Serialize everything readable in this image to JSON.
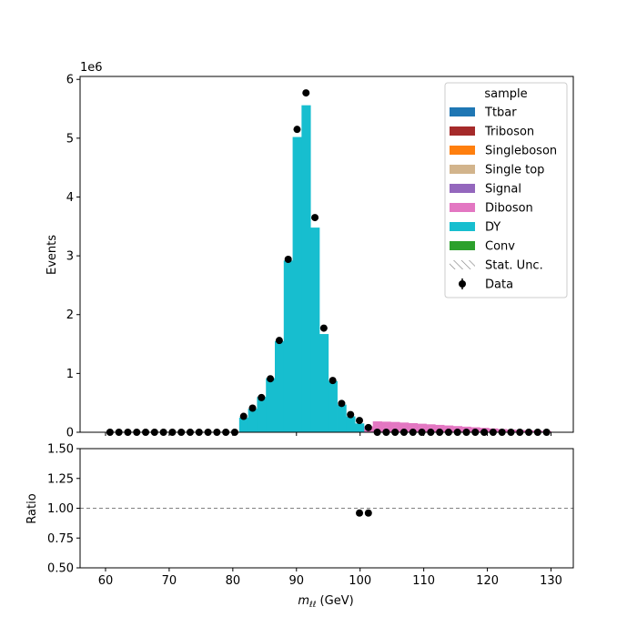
{
  "chart_data": {
    "type": "histogram",
    "x_range": [
      56,
      133.5
    ],
    "x_ticks": [
      60,
      70,
      80,
      90,
      100,
      110,
      120,
      130
    ],
    "x_tick_labels": [
      "60",
      "70",
      "80",
      "90",
      "100",
      "110",
      "120",
      "130"
    ],
    "main": {
      "ylabel": "Events",
      "ylim": [
        0,
        6.05
      ],
      "y_ticks": [
        0,
        1,
        2,
        3,
        4,
        5,
        6
      ],
      "y_tick_labels": [
        "0",
        "1",
        "2",
        "3",
        "4",
        "5",
        "6"
      ],
      "y_scale_label": "1e6",
      "bin_edges": [
        60,
        61.4,
        62.8,
        64.2,
        65.6,
        67.0,
        68.4,
        69.8,
        71.2,
        72.6,
        74.0,
        75.4,
        76.8,
        78.2,
        79.6,
        81.0,
        82.4,
        83.8,
        85.2,
        86.6,
        88.0,
        89.4,
        90.8,
        92.2,
        93.6,
        95.0,
        96.4,
        97.8,
        99.2,
        100.6,
        102.0,
        103.4,
        104.8,
        106.2,
        107.6,
        109.0,
        110.4,
        111.8,
        113.2,
        114.6,
        116.0,
        117.4,
        118.8,
        120.2,
        121.6,
        123.0,
        124.4,
        125.8,
        127.2,
        128.6,
        130.0
      ],
      "stack": [
        {
          "name": "Diboson",
          "color": "#e377c2",
          "values": [
            0,
            0,
            0,
            0,
            0,
            0,
            0,
            0,
            0,
            0,
            0,
            0,
            0,
            0,
            0,
            0,
            0,
            0,
            0,
            0,
            0,
            0,
            0,
            0,
            0,
            0,
            0,
            0,
            0,
            0.1,
            0.185,
            0.18,
            0.175,
            0.165,
            0.155,
            0.145,
            0.135,
            0.125,
            0.115,
            0.105,
            0.095,
            0.085,
            0.075,
            0.065,
            0.055,
            0.047,
            0.04,
            0.033,
            0.027,
            0.02
          ]
        },
        {
          "name": "DY",
          "color": "#17becf",
          "values": [
            0,
            0,
            0,
            0,
            0,
            0,
            0,
            0,
            0,
            0,
            0,
            0,
            0,
            0,
            0,
            0.25,
            0.4,
            0.6,
            0.92,
            1.55,
            2.92,
            5.02,
            5.56,
            3.48,
            1.67,
            0.87,
            0.47,
            0.27,
            0.15,
            0,
            0,
            0,
            0,
            0,
            0,
            0,
            0,
            0,
            0,
            0,
            0,
            0,
            0,
            0,
            0,
            0,
            0,
            0,
            0,
            0
          ]
        }
      ],
      "data_points": {
        "x": [
          60.7,
          62.1,
          63.5,
          64.9,
          66.3,
          67.7,
          69.1,
          70.5,
          71.9,
          73.3,
          74.7,
          76.1,
          77.5,
          78.9,
          80.3,
          81.7,
          83.1,
          84.5,
          85.9,
          87.3,
          88.7,
          90.1,
          91.5,
          92.9,
          94.3,
          95.7,
          97.1,
          98.5,
          99.9,
          101.3,
          102.7,
          104.1,
          105.5,
          106.9,
          108.3,
          109.7,
          111.1,
          112.5,
          113.9,
          115.3,
          116.7,
          118.1,
          119.5,
          120.9,
          122.3,
          123.7,
          125.1,
          126.5,
          127.9,
          129.3
        ],
        "y": [
          0,
          0,
          0,
          0,
          0,
          0,
          0,
          0,
          0,
          0,
          0,
          0,
          0,
          0,
          0,
          0.27,
          0.41,
          0.59,
          0.91,
          1.56,
          2.94,
          5.15,
          5.77,
          3.65,
          1.77,
          0.88,
          0.49,
          0.3,
          0.2,
          0.08,
          0,
          0,
          0,
          0,
          0,
          0,
          0,
          0,
          0,
          0,
          0,
          0,
          0,
          0,
          0,
          0,
          0,
          0,
          0,
          0
        ]
      }
    },
    "ratio": {
      "ylabel": "Ratio",
      "ylim": [
        0.5,
        1.5
      ],
      "y_ticks": [
        0.5,
        0.75,
        1.0,
        1.25,
        1.5
      ],
      "y_tick_labels": [
        "0.50",
        "0.75",
        "1.00",
        "1.25",
        "1.50"
      ],
      "reference_line": 1.0,
      "points": {
        "x": [
          99.9,
          101.3
        ],
        "y": [
          0.96,
          0.96
        ]
      }
    },
    "xlabel": {
      "main": "m",
      "sub": "ℓℓ",
      "unit": " (GeV)"
    },
    "legend": {
      "title": "sample",
      "placement": "top-right",
      "entries": [
        {
          "label": "Ttbar",
          "type": "patch",
          "color": "#1f77b4"
        },
        {
          "label": "Triboson",
          "type": "patch",
          "color": "#a52a2a"
        },
        {
          "label": "Singleboson",
          "type": "patch",
          "color": "#ff7f0e"
        },
        {
          "label": "Single top",
          "type": "patch",
          "color": "#d2b48c"
        },
        {
          "label": "Signal",
          "type": "patch",
          "color": "#9467bd"
        },
        {
          "label": "Diboson",
          "type": "patch",
          "color": "#e377c2"
        },
        {
          "label": "DY",
          "type": "patch",
          "color": "#17becf"
        },
        {
          "label": "Conv",
          "type": "patch",
          "color": "#2ca02c"
        },
        {
          "label": "Stat. Unc.",
          "type": "hatch",
          "color": "#808080"
        },
        {
          "label": "Data",
          "type": "marker",
          "color": "#000000"
        }
      ]
    }
  }
}
